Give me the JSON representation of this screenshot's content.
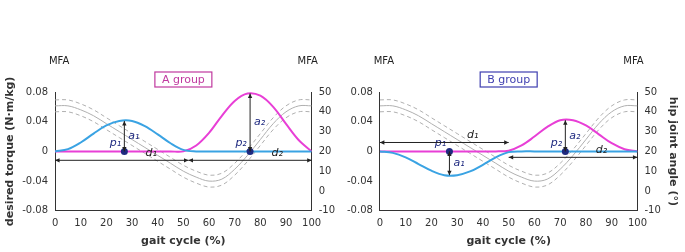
{
  "chart_data": [
    {
      "type": "line",
      "title": "A group",
      "end_labels": [
        "MFA",
        "MFA"
      ],
      "x_label": "gait cycle (%)",
      "y_label": "desired torque (N·m/kg)",
      "x": [
        0,
        5,
        10,
        15,
        20,
        25,
        30,
        35,
        40,
        45,
        50,
        55,
        60,
        65,
        70,
        75,
        80,
        85,
        90,
        95,
        100
      ],
      "series": [
        {
          "color": "#b0b0b0",
          "axis": "y2",
          "line_style": "dashed",
          "values": [
            46,
            46,
            44,
            41,
            37,
            33,
            29,
            25,
            21,
            17,
            13,
            10,
            8,
            9,
            14,
            21,
            29,
            37,
            43,
            46,
            46
          ]
        },
        {
          "color": "#b0b0b0",
          "axis": "y2",
          "line_style": "solid",
          "values": [
            43,
            43,
            41,
            38,
            34,
            30,
            26,
            22,
            18,
            14,
            10,
            7,
            5,
            6,
            11,
            18,
            26,
            34,
            40,
            43,
            43
          ]
        },
        {
          "color": "#b0b0b0",
          "axis": "y2",
          "line_style": "dashed",
          "values": [
            40,
            40,
            38,
            35,
            31,
            27,
            23,
            19,
            15,
            11,
            7,
            4,
            2,
            3,
            8,
            15,
            23,
            31,
            37,
            40,
            40
          ]
        },
        {
          "color": "#3aa3e3",
          "line_style": "solid",
          "values": [
            0,
            0.003,
            0.012,
            0.024,
            0.035,
            0.041,
            0.041,
            0.034,
            0.023,
            0.011,
            0.002,
            0,
            0,
            0,
            0,
            0,
            0,
            0,
            0,
            0,
            0
          ]
        },
        {
          "color": "#e83fd6",
          "line_style": "solid",
          "values": [
            0,
            0,
            0,
            0,
            0,
            0,
            0,
            0,
            0,
            0,
            0,
            0.008,
            0.025,
            0.048,
            0.068,
            0.078,
            0.075,
            0.06,
            0.037,
            0.015,
            0
          ]
        }
      ],
      "xlim": [
        0,
        100
      ],
      "xticks": [
        0,
        10,
        20,
        30,
        40,
        50,
        60,
        70,
        80,
        90,
        100
      ],
      "ylim": [
        -0.08,
        0.08
      ],
      "yticks": [
        -0.08,
        -0.04,
        0,
        0.04,
        0.08
      ],
      "y2lim": [
        -10,
        50
      ],
      "y2ticks": [
        -10,
        0,
        10,
        20,
        30,
        40,
        50
      ],
      "grid": false,
      "annotations": [
        {
          "kind": "point",
          "text": "p₁",
          "x": 27,
          "y": 0
        },
        {
          "kind": "vertical",
          "text": "a₁",
          "x": 27,
          "from": 0,
          "to": 0.041
        },
        {
          "kind": "horizontal",
          "text": "d₁",
          "y": -0.012,
          "from": 0,
          "to": 52
        },
        {
          "kind": "point",
          "text": "p₂",
          "x": 76,
          "y": 0
        },
        {
          "kind": "vertical",
          "text": "a₂",
          "x": 76,
          "from": 0,
          "to": 0.078
        },
        {
          "kind": "horizontal",
          "text": "d₂",
          "y": -0.012,
          "from": 52,
          "to": 100
        }
      ]
    },
    {
      "type": "line",
      "title": "B group",
      "end_labels": [
        "MFA",
        "MFA"
      ],
      "x_label": "gait cycle (%)",
      "y2_label": "hip joint angle (°)",
      "x": [
        0,
        5,
        10,
        15,
        20,
        25,
        30,
        35,
        40,
        45,
        50,
        55,
        60,
        65,
        70,
        75,
        80,
        85,
        90,
        95,
        100
      ],
      "series": [
        {
          "color": "#b0b0b0",
          "axis": "y2",
          "line_style": "dashed",
          "values": [
            46,
            46,
            44,
            41,
            37,
            33,
            29,
            25,
            21,
            17,
            13,
            10,
            8,
            9,
            14,
            21,
            29,
            37,
            43,
            46,
            46
          ]
        },
        {
          "color": "#b0b0b0",
          "axis": "y2",
          "line_style": "solid",
          "values": [
            43,
            43,
            41,
            38,
            34,
            30,
            26,
            22,
            18,
            14,
            10,
            7,
            5,
            6,
            11,
            18,
            26,
            34,
            40,
            43,
            43
          ]
        },
        {
          "color": "#b0b0b0",
          "axis": "y2",
          "line_style": "dashed",
          "values": [
            40,
            40,
            38,
            35,
            31,
            27,
            23,
            19,
            15,
            11,
            7,
            4,
            2,
            3,
            8,
            15,
            23,
            31,
            37,
            40,
            40
          ]
        },
        {
          "color": "#3aa3e3",
          "line_style": "solid",
          "values": [
            0,
            -0.002,
            -0.008,
            -0.017,
            -0.026,
            -0.032,
            -0.032,
            -0.027,
            -0.018,
            -0.008,
            -0.001,
            0,
            0,
            0,
            0,
            0,
            0,
            0,
            0,
            0,
            0
          ]
        },
        {
          "color": "#e83fd6",
          "line_style": "solid",
          "values": [
            0,
            0,
            0,
            0,
            0,
            0,
            0,
            0,
            0,
            0,
            0.001,
            0.008,
            0.02,
            0.033,
            0.042,
            0.042,
            0.035,
            0.023,
            0.011,
            0.003,
            0
          ]
        }
      ],
      "xlim": [
        0,
        100
      ],
      "xticks": [
        0,
        10,
        20,
        30,
        40,
        50,
        60,
        70,
        80,
        90,
        100
      ],
      "ylim": [
        -0.08,
        0.08
      ],
      "yticks": [
        -0.08,
        -0.04,
        0,
        0.04,
        0.08
      ],
      "y2lim": [
        -10,
        50
      ],
      "y2ticks": [
        -10,
        0,
        10,
        20,
        30,
        40,
        50
      ],
      "grid": false,
      "annotations": [
        {
          "kind": "point",
          "text": "p₁",
          "x": 27,
          "y": 0
        },
        {
          "kind": "vertical",
          "text": "a₁",
          "x": 27,
          "from": 0,
          "to": -0.032
        },
        {
          "kind": "horizontal",
          "text": "d₁",
          "y": 0.012,
          "from": 0,
          "to": 50
        },
        {
          "kind": "point",
          "text": "p₂",
          "x": 72,
          "y": 0
        },
        {
          "kind": "vertical",
          "text": "a₂",
          "x": 72,
          "from": 0,
          "to": 0.042
        },
        {
          "kind": "horizontal",
          "text": "d₂",
          "y": -0.008,
          "from": 50,
          "to": 100
        }
      ]
    }
  ]
}
